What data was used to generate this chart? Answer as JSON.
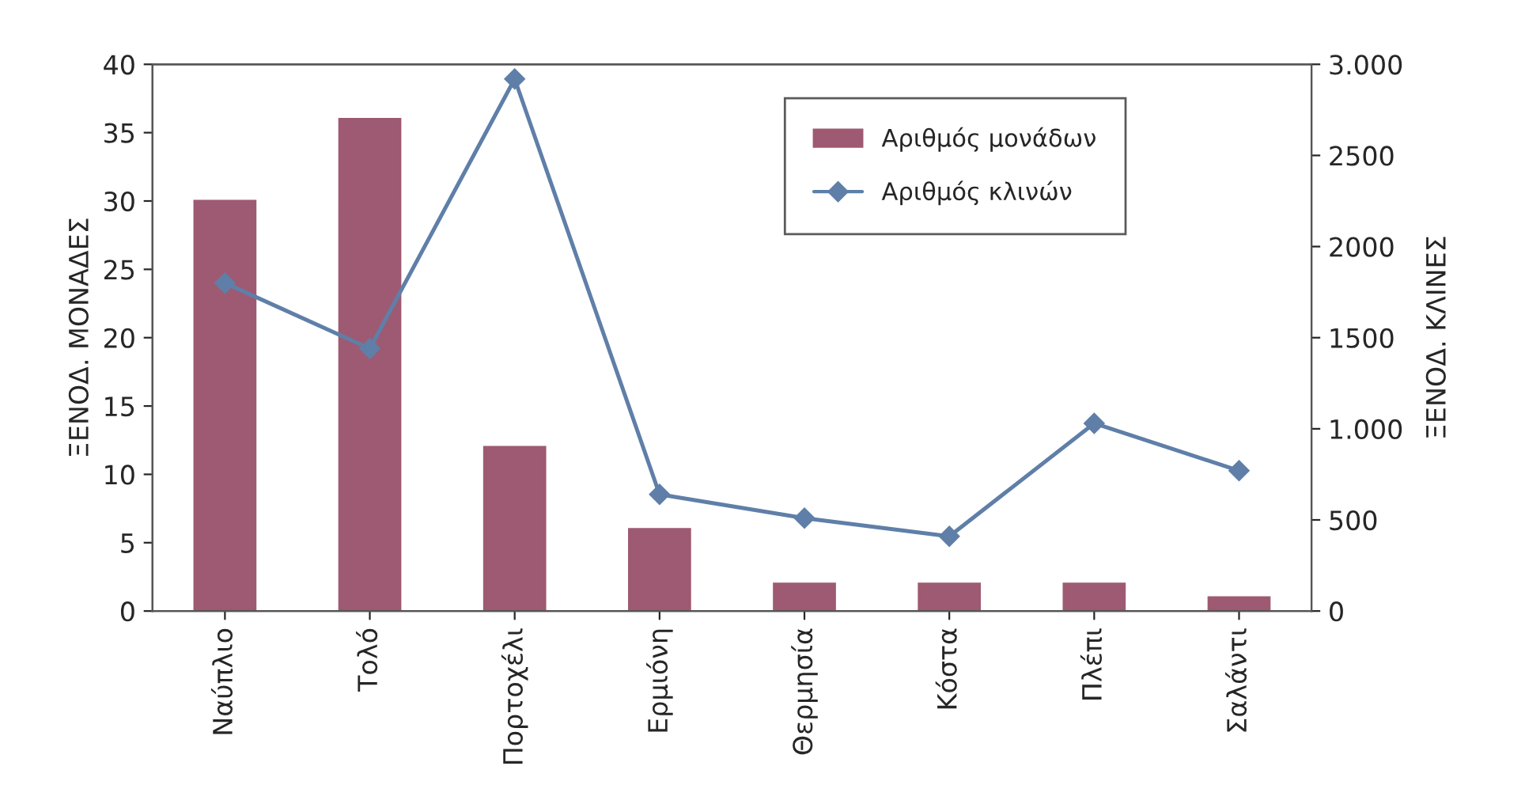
{
  "chart_data": {
    "type": "bar",
    "ylabel": "ΞΕΝΟΔ. ΜΟΝΑΔΕΣ",
    "y2label": "ΞΕΝΟΔ. ΚΛΙΝΕΣ",
    "categories": [
      "Ναύπλιο",
      "Τολό",
      "Πορτοχέλι",
      "Ερμιόνη",
      "Θερμησία",
      "Κόστα",
      "Πλέπι",
      "Σαλάντι"
    ],
    "series": [
      {
        "name": "Αριθμός μονάδων",
        "color": "#9e5a72",
        "values": [
          30,
          36,
          12,
          6,
          2,
          2,
          2,
          1
        ]
      },
      {
        "name": "Αριθμός κλινών",
        "type": "line",
        "axis": "y2",
        "color": "#5f7fa8",
        "values": [
          1800,
          1440,
          2920,
          640,
          510,
          410,
          1030,
          770
        ]
      }
    ],
    "ylim": [
      0,
      40
    ],
    "yticks": [
      0,
      5,
      10,
      15,
      20,
      25,
      30,
      35,
      40
    ],
    "y2lim": [
      0,
      3000
    ],
    "y2ticks": [
      0,
      500,
      {
        "value": 1000,
        "label": "1.000"
      },
      1500,
      2000,
      2500,
      {
        "value": 3000,
        "label": "3.000"
      }
    ],
    "marker": "diamond",
    "line_style": "solid",
    "legend": "top right",
    "grid": false
  }
}
